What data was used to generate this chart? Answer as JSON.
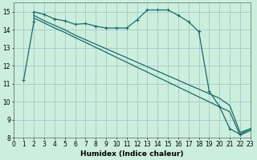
{
  "bg_color": "#cceedd",
  "grid_color": "#aacccc",
  "line_color": "#1a6b6b",
  "line1_x": [
    1,
    2,
    2,
    3,
    4,
    5,
    6,
    7,
    8,
    9,
    10,
    11,
    12,
    13,
    14,
    15,
    16,
    17,
    18,
    19,
    20,
    21,
    22,
    23
  ],
  "line1_y": [
    11.2,
    14.45,
    15.0,
    14.85,
    14.6,
    14.5,
    14.3,
    14.35,
    14.2,
    14.1,
    14.1,
    14.1,
    14.55,
    15.1,
    15.1,
    15.1,
    14.8,
    14.45,
    13.9,
    10.6,
    9.75,
    8.5,
    8.2,
    8.5
  ],
  "line2_x": [
    2,
    3,
    4,
    5,
    6,
    7,
    8,
    9,
    10,
    11,
    12,
    13,
    14,
    15,
    16,
    17,
    18,
    19,
    20,
    21,
    22,
    23
  ],
  "line2_y": [
    14.8,
    14.5,
    14.25,
    14.0,
    13.7,
    13.45,
    13.2,
    12.95,
    12.7,
    12.45,
    12.2,
    11.95,
    11.7,
    11.45,
    11.2,
    10.95,
    10.7,
    10.45,
    10.2,
    9.8,
    8.3,
    8.5
  ],
  "line3_x": [
    2,
    3,
    4,
    5,
    6,
    7,
    8,
    9,
    10,
    11,
    12,
    13,
    14,
    15,
    16,
    17,
    18,
    19,
    20,
    21,
    22,
    23
  ],
  "line3_y": [
    14.65,
    14.38,
    14.1,
    13.85,
    13.57,
    13.3,
    13.02,
    12.75,
    12.47,
    12.2,
    11.92,
    11.65,
    11.37,
    11.1,
    10.82,
    10.55,
    10.27,
    10.0,
    9.72,
    9.45,
    8.15,
    8.4
  ],
  "xlabel": "Humidex (Indice chaleur)",
  "xlim": [
    0,
    23
  ],
  "ylim": [
    8,
    15.5
  ],
  "xticks": [
    0,
    1,
    2,
    3,
    4,
    5,
    6,
    7,
    8,
    9,
    10,
    11,
    12,
    13,
    14,
    15,
    16,
    17,
    18,
    19,
    20,
    21,
    22,
    23
  ],
  "yticks": [
    8,
    9,
    10,
    11,
    12,
    13,
    14,
    15
  ],
  "xlabel_fontsize": 6.5,
  "tick_fontsize": 5.5
}
